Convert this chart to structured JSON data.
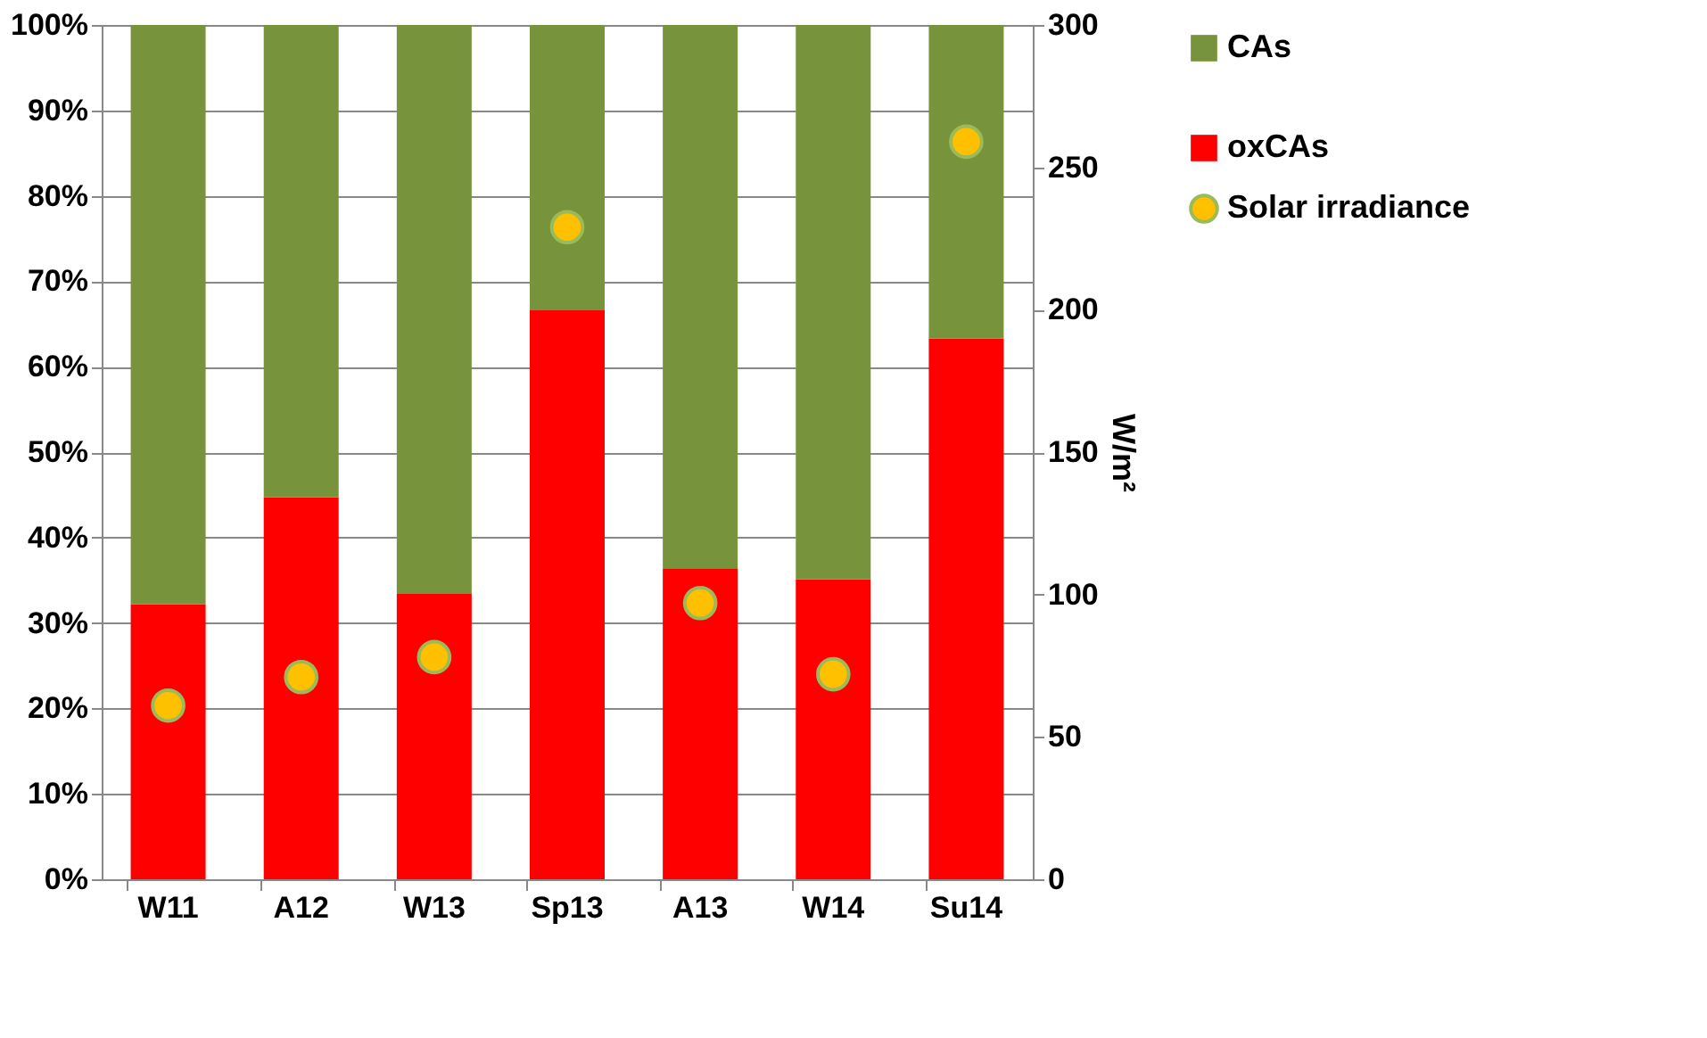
{
  "chart_data": {
    "type": "bar",
    "stacked": true,
    "categories": [
      "W11",
      "A12",
      "W13",
      "Sp13",
      "A13",
      "W14",
      "Su14"
    ],
    "series": [
      {
        "name": "oxCAs",
        "color": "#ff0000",
        "values": [
          32.2,
          44.7,
          33.4,
          66.6,
          36.4,
          35.1,
          63.3
        ]
      },
      {
        "name": "CAs",
        "color": "#77933c",
        "values": [
          67.8,
          55.3,
          66.6,
          33.4,
          63.6,
          64.9,
          36.7
        ]
      },
      {
        "name": "Solar irradiance",
        "type": "scatter",
        "axis": "y2",
        "marker": "circle",
        "color": "#ffc000",
        "values": [
          61,
          71,
          78,
          229,
          97,
          72,
          259
        ]
      }
    ],
    "ylim": [
      0,
      100
    ],
    "yticks": [
      {
        "value": 0,
        "label": "0%"
      },
      {
        "value": 10,
        "label": "10%"
      },
      {
        "value": 20,
        "label": "20%"
      },
      {
        "value": 30,
        "label": "30%"
      },
      {
        "value": 40,
        "label": "40%"
      },
      {
        "value": 50,
        "label": "50%"
      },
      {
        "value": 60,
        "label": "60%"
      },
      {
        "value": 70,
        "label": "70%"
      },
      {
        "value": 80,
        "label": "80%"
      },
      {
        "value": 90,
        "label": "90%"
      },
      {
        "value": 100,
        "label": "100%"
      }
    ],
    "y2label": "W/m²",
    "y2lim": [
      0,
      300
    ],
    "y2ticks": [
      0,
      50,
      100,
      150,
      200,
      250,
      300
    ],
    "grid": "y",
    "legend": "right"
  }
}
